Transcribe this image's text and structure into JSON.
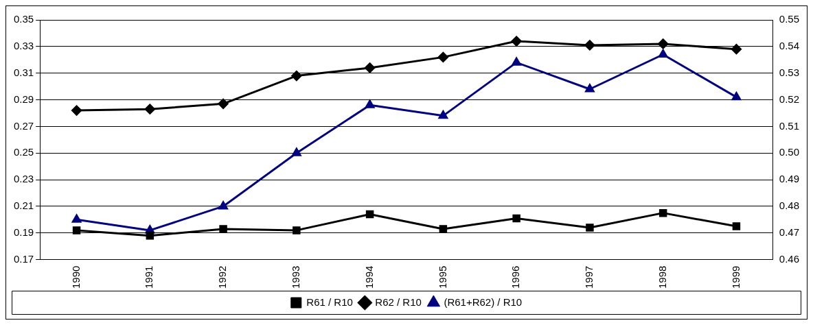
{
  "chart_data": {
    "type": "line",
    "categories": [
      "1990",
      "1991",
      "1992",
      "1993",
      "1994",
      "1995",
      "1996",
      "1997",
      "1998",
      "1999"
    ],
    "series": [
      {
        "name": "R61 / R10",
        "color": "#000000",
        "marker": "square",
        "values": [
          0.192,
          0.188,
          0.193,
          0.192,
          0.204,
          0.193,
          0.201,
          0.194,
          0.205,
          0.195
        ]
      },
      {
        "name": "R62 / R10",
        "color": "#000000",
        "marker": "diamond",
        "values": [
          0.282,
          0.283,
          0.287,
          0.308,
          0.314,
          0.322,
          0.334,
          0.331,
          0.332,
          0.328
        ]
      },
      {
        "name": "(R61+R62) / R10",
        "color": "#000080",
        "marker": "triangle",
        "axis": "y2",
        "values": [
          0.475,
          0.471,
          0.48,
          0.5,
          0.518,
          0.514,
          0.534,
          0.524,
          0.537,
          0.521
        ]
      }
    ],
    "ylim": [
      0.17,
      0.35
    ],
    "yticks": [
      0.17,
      0.19,
      0.21,
      0.23,
      0.25,
      0.27,
      0.29,
      0.31,
      0.33,
      0.35
    ],
    "y2lim": [
      0.46,
      0.55
    ],
    "y2ticks": [
      0.46,
      0.47,
      0.48,
      0.49,
      {
        "value": 0.5,
        "label": "0.50"
      },
      0.51,
      0.52,
      0.53,
      0.54,
      0.55
    ],
    "grid": "y",
    "legend": "bottom",
    "line_style": "solid"
  }
}
